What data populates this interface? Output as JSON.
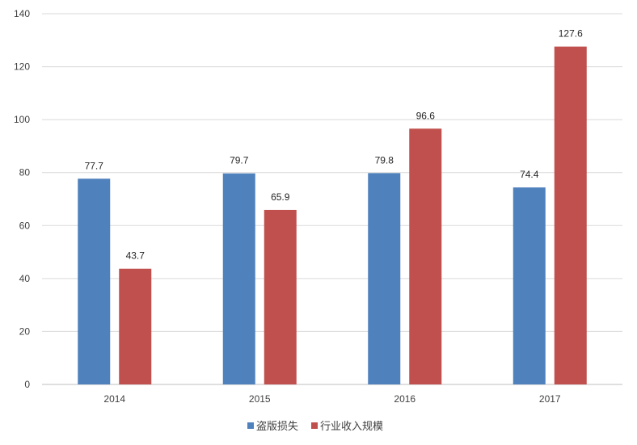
{
  "chart_data": {
    "type": "bar",
    "categories": [
      "2014",
      "2015",
      "2016",
      "2017"
    ],
    "series": [
      {
        "name": "盗版损失",
        "values": [
          77.7,
          79.7,
          79.8,
          74.4
        ],
        "color": "#4f81bd"
      },
      {
        "name": "行业收入规模",
        "values": [
          43.7,
          65.9,
          96.6,
          127.6
        ],
        "color": "#c0504d"
      }
    ],
    "ylim": [
      0,
      140
    ],
    "yticks": [
      "0",
      "20",
      "40",
      "60",
      "80",
      "100",
      "120",
      "140"
    ],
    "data_labels": [
      [
        "77.7",
        "79.7",
        "79.8",
        "74.4"
      ],
      [
        "43.7",
        "65.9",
        "96.6",
        "127.6"
      ]
    ],
    "grid": true,
    "legend": "bottom"
  }
}
